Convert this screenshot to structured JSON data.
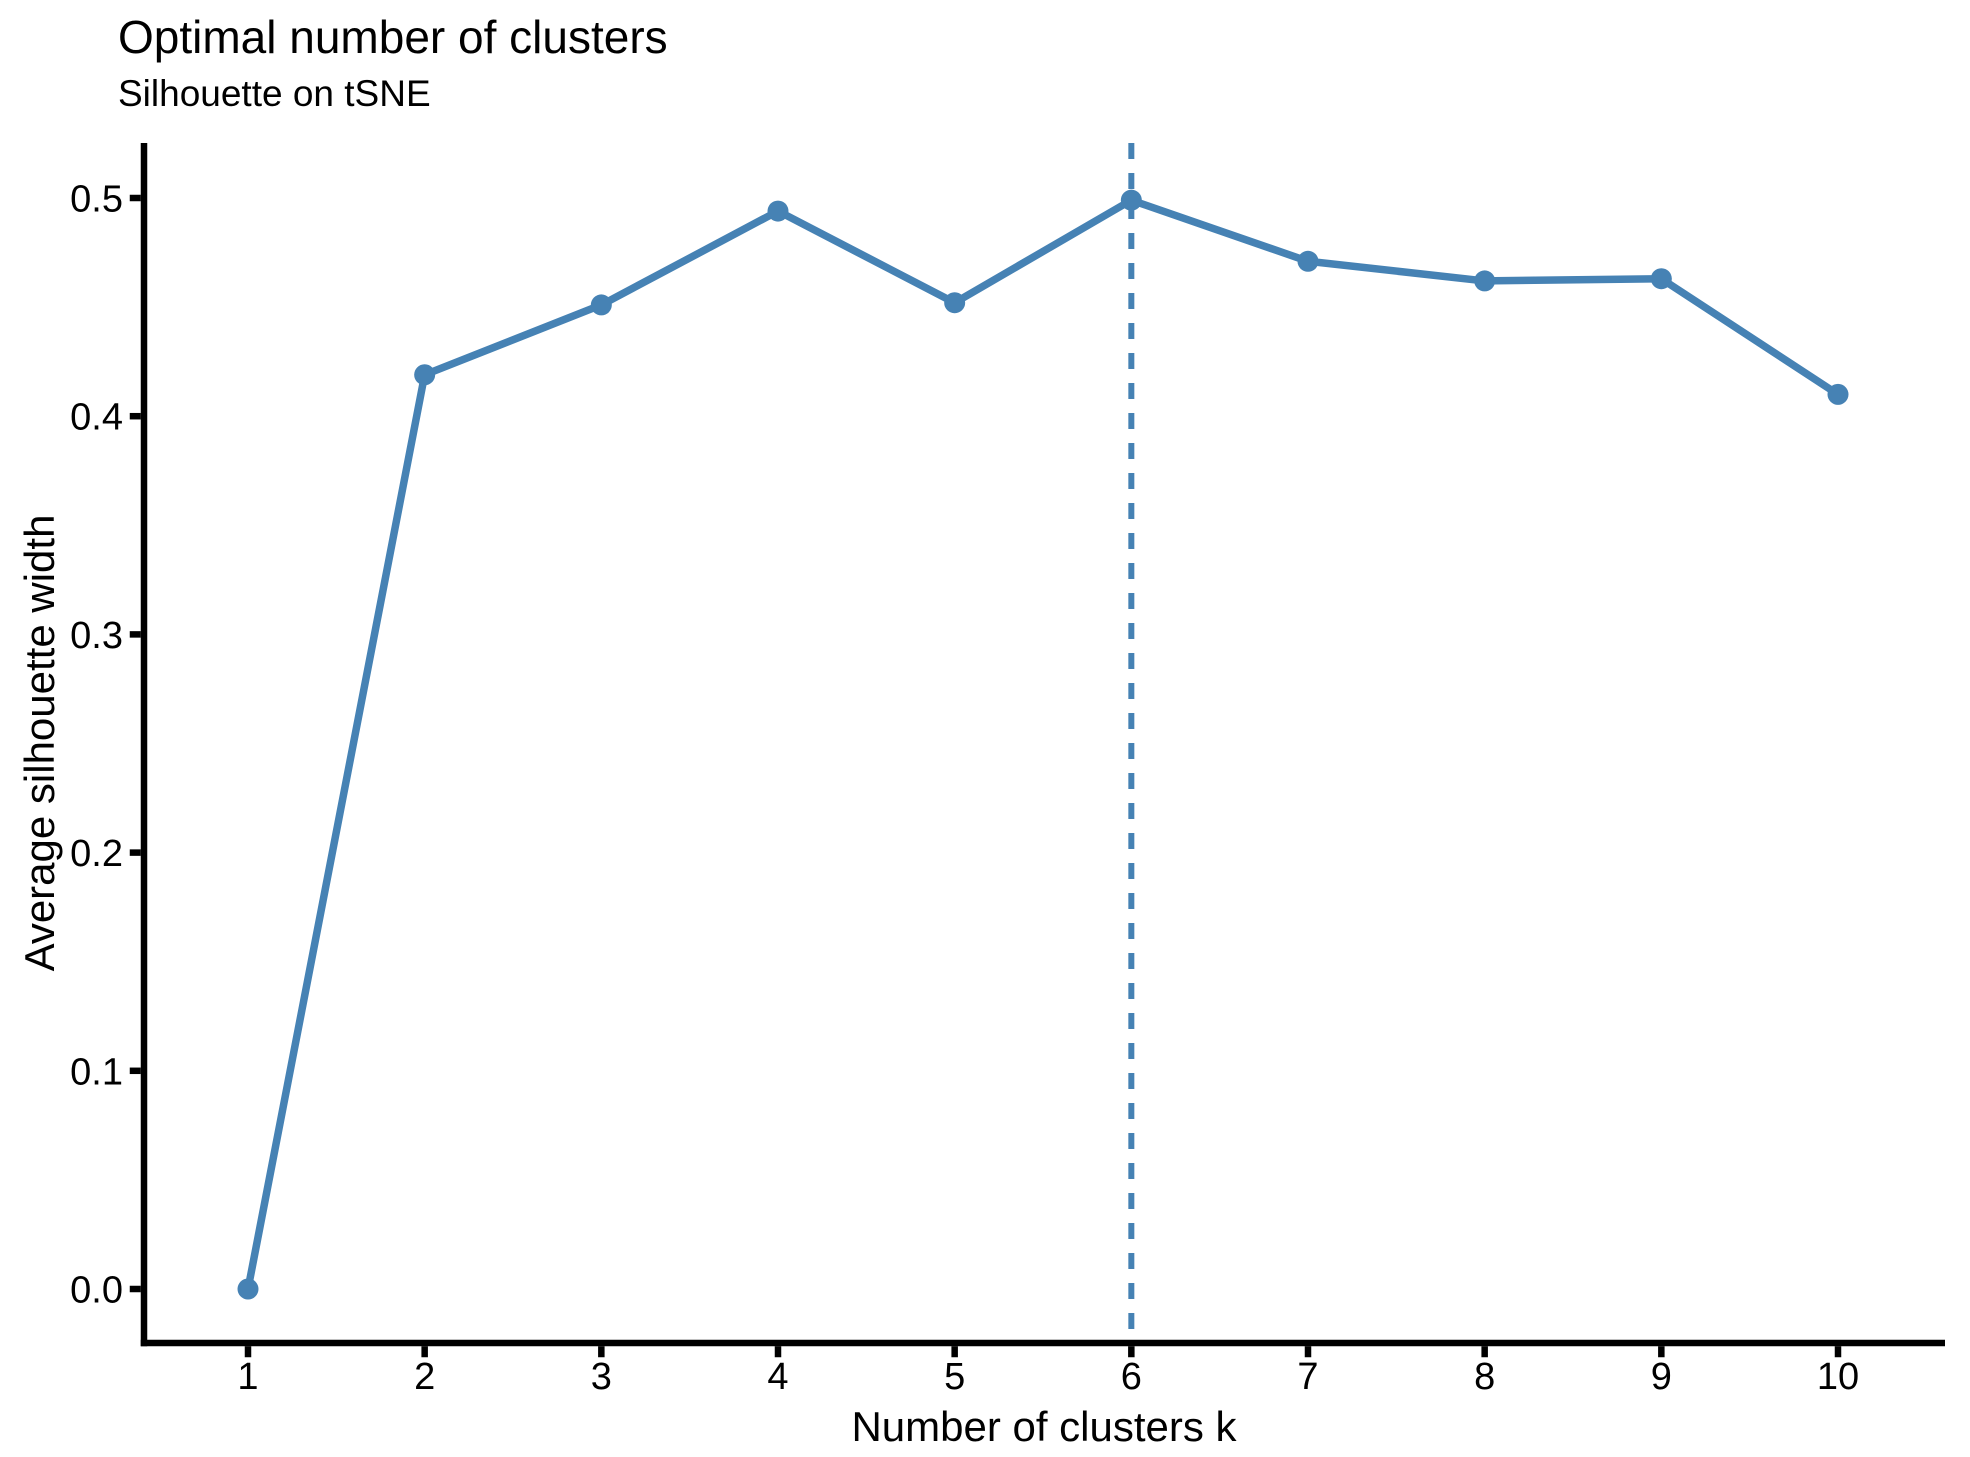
{
  "chart_data": {
    "type": "line",
    "title": "Optimal number of clusters",
    "subtitle": "Silhouette on tSNE",
    "xlabel": "Number of clusters k",
    "ylabel": "Average silhouette width",
    "x": [
      1,
      2,
      3,
      4,
      5,
      6,
      7,
      8,
      9,
      10
    ],
    "values": [
      0.0,
      0.419,
      0.451,
      0.494,
      0.452,
      0.499,
      0.471,
      0.462,
      0.463,
      0.41
    ],
    "series_name": "Average silhouette width",
    "x_tick_labels": [
      "1",
      "2",
      "3",
      "4",
      "5",
      "6",
      "7",
      "8",
      "9",
      "10"
    ],
    "y_tick_labels": [
      "0.0",
      "0.1",
      "0.2",
      "0.3",
      "0.4",
      "0.5"
    ],
    "y_tick_values": [
      0.0,
      0.1,
      0.2,
      0.3,
      0.4,
      0.5
    ],
    "xlim": [
      1,
      10
    ],
    "ylim": [
      0.0,
      0.525
    ],
    "optimal_k": 6,
    "grid": "off",
    "legend": "none",
    "colors": {
      "line": "#4682B4",
      "marker": "#4682B4",
      "vline": "#4682B4",
      "axis": "#000000",
      "text": "#000000",
      "background": "#ffffff"
    }
  }
}
